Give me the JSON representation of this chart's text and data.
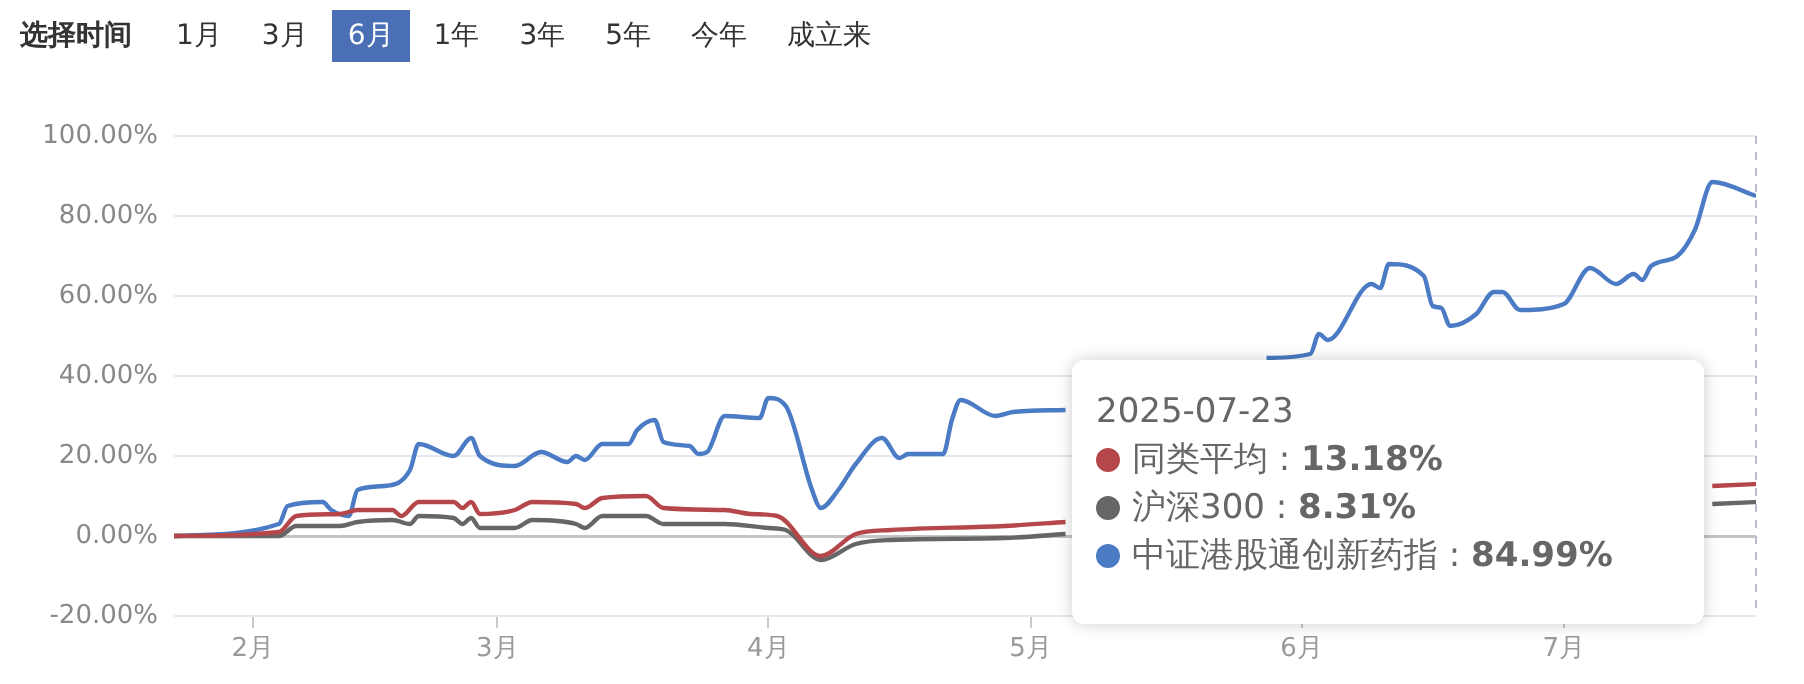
{
  "chart_data": {
    "type": "line",
    "xlim": [
      "2025-01-23",
      "2025-07-23"
    ],
    "xticks": [
      {
        "value": "2025-02-01",
        "label": "2月"
      },
      {
        "value": "2025-03-01",
        "label": "3月"
      },
      {
        "value": "2025-04-01",
        "label": "4月"
      },
      {
        "value": "2025-05-01",
        "label": "5月"
      },
      {
        "value": "2025-06-01",
        "label": "6月"
      },
      {
        "value": "2025-07-01",
        "label": "7月"
      }
    ],
    "ylim": [
      -20,
      100
    ],
    "yticks": [
      {
        "value": -20,
        "label": "-20.00%"
      },
      {
        "value": 0,
        "label": "0.00%"
      },
      {
        "value": 20,
        "label": "20.00%"
      },
      {
        "value": 40,
        "label": "40.00%"
      },
      {
        "value": 60,
        "label": "60.00%"
      },
      {
        "value": 80,
        "label": "80.00%"
      },
      {
        "value": 100,
        "label": "100.00%"
      }
    ],
    "grid": "y",
    "legend": "bottom right",
    "marker": "none",
    "line_style": "solid",
    "series": [
      {
        "name": "同类平均",
        "color": "#b5474a",
        "x": [
          "2025-01-23",
          "2025-02-04",
          "2025-02-06",
          "2025-02-11",
          "2025-02-13",
          "2025-02-17",
          "2025-02-18",
          "2025-02-20",
          "2025-02-24",
          "2025-02-25",
          "2025-02-26",
          "2025-02-27",
          "2025-03-03",
          "2025-03-05",
          "2025-03-10",
          "2025-03-11",
          "2025-03-13",
          "2025-03-18",
          "2025-03-20",
          "2025-03-27",
          "2025-03-30",
          "2025-04-02",
          "2025-04-07",
          "2025-04-11",
          "2025-04-15",
          "2025-04-28",
          "2025-05-05",
          "2025-05-06",
          "2025-07-18",
          "2025-07-23"
        ],
        "values": [
          0,
          1,
          5,
          5.5,
          6.5,
          6.5,
          5,
          8.5,
          8.5,
          7,
          8.5,
          5.5,
          6.5,
          8.5,
          8,
          7,
          9.5,
          10,
          7,
          6.5,
          5.5,
          5,
          -5,
          0.5,
          1.5,
          2.5,
          3.5,
          null,
          12.5,
          13
        ]
      },
      {
        "name": "沪深300",
        "color": "#666666",
        "x": [
          "2025-01-23",
          "2025-02-04",
          "2025-02-06",
          "2025-02-11",
          "2025-02-13",
          "2025-02-17",
          "2025-02-19",
          "2025-02-20",
          "2025-02-24",
          "2025-02-25",
          "2025-02-26",
          "2025-02-27",
          "2025-03-03",
          "2025-03-05",
          "2025-03-10",
          "2025-03-11",
          "2025-03-13",
          "2025-03-18",
          "2025-03-20",
          "2025-03-27",
          "2025-04-01",
          "2025-04-03",
          "2025-04-07",
          "2025-04-11",
          "2025-04-15",
          "2025-04-28",
          "2025-05-05",
          "2025-05-06",
          "2025-07-18",
          "2025-07-23"
        ],
        "values": [
          0,
          0,
          2.5,
          2.5,
          3.5,
          4,
          3,
          5,
          4.5,
          3,
          4.5,
          2,
          2,
          4,
          3,
          2,
          5,
          5,
          3,
          3,
          2,
          1.5,
          -6,
          -2,
          -1,
          -0.5,
          0.5,
          null,
          8,
          8.5
        ]
      },
      {
        "name": "中证港股通创新药指",
        "color": "#4a7bc4",
        "x": [
          "2025-01-23",
          "2025-02-04",
          "2025-02-05",
          "2025-02-09",
          "2025-02-10",
          "2025-02-12",
          "2025-02-13",
          "2025-02-16",
          "2025-02-19",
          "2025-02-20",
          "2025-02-24",
          "2025-02-26",
          "2025-02-27",
          "2025-03-03",
          "2025-03-06",
          "2025-03-09",
          "2025-03-10",
          "2025-03-11",
          "2025-03-13",
          "2025-03-16",
          "2025-03-17",
          "2025-03-19",
          "2025-03-20",
          "2025-03-23",
          "2025-03-24",
          "2025-03-25",
          "2025-03-27",
          "2025-03-31",
          "2025-04-01",
          "2025-04-03",
          "2025-04-06",
          "2025-04-07",
          "2025-04-09",
          "2025-04-11",
          "2025-04-14",
          "2025-04-16",
          "2025-04-17",
          "2025-04-21",
          "2025-04-22",
          "2025-04-23",
          "2025-04-27",
          "2025-04-29",
          "2025-05-05",
          "2025-05-06",
          "2025-05-28",
          "2025-06-02",
          "2025-06-03",
          "2025-06-04",
          "2025-06-09",
          "2025-06-10",
          "2025-06-11",
          "2025-06-15",
          "2025-06-16",
          "2025-06-17",
          "2025-06-18",
          "2025-06-21",
          "2025-06-23",
          "2025-06-24",
          "2025-06-26",
          "2025-07-01",
          "2025-07-04",
          "2025-07-07",
          "2025-07-09",
          "2025-07-10",
          "2025-07-11",
          "2025-07-14",
          "2025-07-16",
          "2025-07-18",
          "2025-07-23"
        ],
        "values": [
          0,
          3,
          7.5,
          8.5,
          6.5,
          5,
          11.5,
          12.5,
          16.5,
          23,
          20,
          24.5,
          20,
          17.5,
          21,
          18.5,
          20,
          19,
          23,
          23,
          26.5,
          29,
          23.5,
          22.5,
          20.5,
          21,
          30,
          29.5,
          34.5,
          32.5,
          11.5,
          7,
          11.5,
          18,
          24.5,
          19.5,
          20.5,
          20.5,
          29,
          34,
          30,
          31,
          31.5,
          null,
          44.5,
          45.5,
          50.5,
          49,
          63,
          62,
          68,
          65,
          57.5,
          57,
          52.5,
          55.5,
          61,
          61,
          56.5,
          58,
          67,
          63,
          65.5,
          64,
          67.5,
          70,
          76.5,
          88.5,
          85
        ]
      }
    ],
    "ref_lines": [
      {
        "axis": "x",
        "value": "2025-07-23",
        "color": "#b8bccc",
        "line_style": "dashed"
      }
    ],
    "annotations": [
      "选择时间",
      "1月",
      "3月",
      "6月",
      "1年",
      "3年",
      "5年",
      "今年",
      "成立来",
      "2025-07-23",
      " : 13.18%",
      " : 8.31%",
      " : 84.99%"
    ]
  }
}
